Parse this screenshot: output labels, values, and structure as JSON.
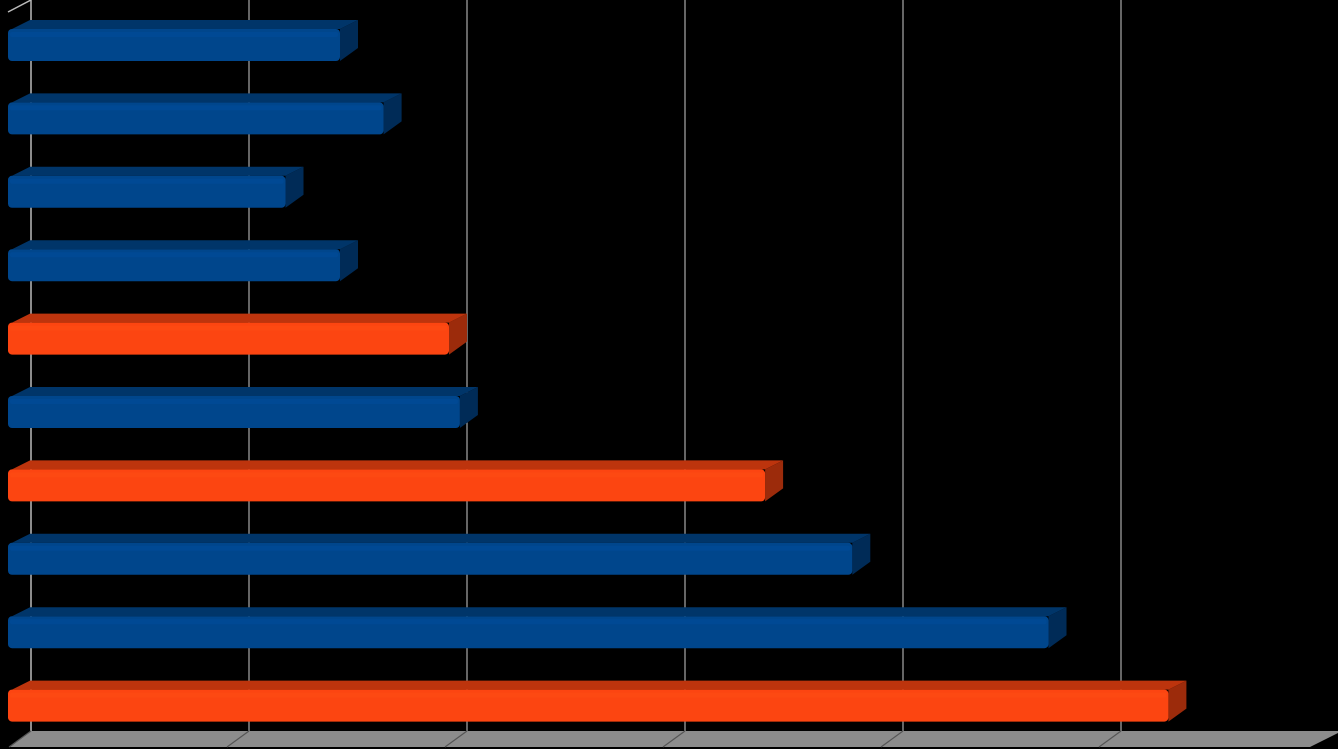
{
  "chart_data": {
    "type": "bar3d",
    "orientation": "horizontal",
    "categories": [
      null,
      null,
      null,
      null,
      null,
      null,
      null,
      null,
      null,
      null
    ],
    "values": [
      1.5,
      1.7,
      1.25,
      1.5,
      2.0,
      2.05,
      3.45,
      3.85,
      4.75,
      5.3
    ],
    "colors": [
      "#00468c",
      "#00468c",
      "#00468c",
      "#00468c",
      "#fc4511",
      "#00468c",
      "#fc4511",
      "#00468c",
      "#00468c",
      "#fc4511"
    ],
    "xlim": [
      0,
      6
    ],
    "xticks": [
      0,
      1,
      2,
      3,
      4,
      5
    ],
    "grid": true
  }
}
